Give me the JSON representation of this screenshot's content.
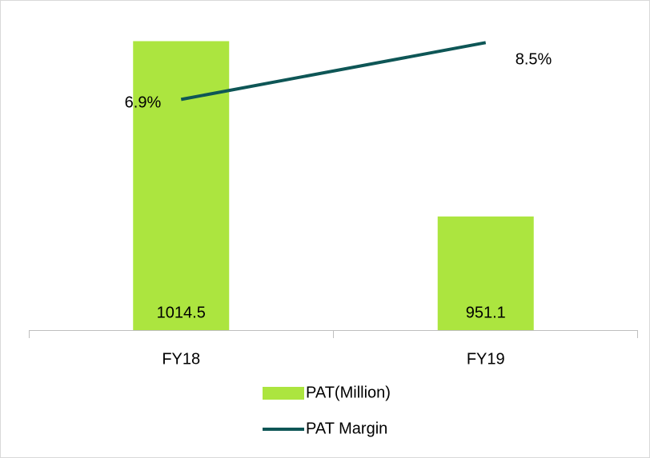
{
  "chart_data": {
    "type": "bar_line",
    "categories": [
      "FY18",
      "FY19"
    ],
    "series": [
      {
        "name": "PAT(Million)",
        "type": "bar",
        "color": "#ace53f",
        "values": [
          1014.5,
          951.1
        ]
      },
      {
        "name": "PAT Margin",
        "type": "line",
        "axis": "y2",
        "color": "#0e5656",
        "values": [
          6.9,
          8.5
        ],
        "value_labels": [
          "6.9%",
          "8.5%"
        ]
      }
    ],
    "ylim": [
      910,
      1023.6
    ],
    "y2lim": [
      0.4,
      9.25
    ],
    "grid": false,
    "legend": "bottom"
  }
}
